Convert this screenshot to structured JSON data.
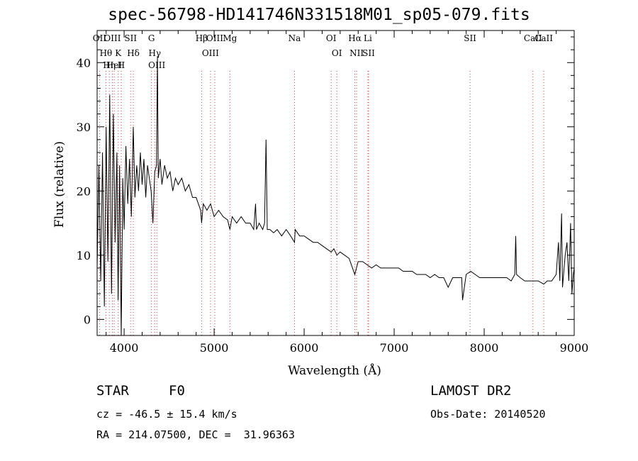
{
  "chart_data": {
    "type": "line",
    "title": "spec-56798-HD141746N331518M01_sp05-079.fits",
    "xlabel": "Wavelength (Å)",
    "ylabel": "Flux (relative)",
    "xlim": [
      3700,
      9000
    ],
    "ylim": [
      -2.5,
      45
    ],
    "x_ticks": [
      4000,
      5000,
      6000,
      7000,
      8000,
      9000
    ],
    "y_ticks": [
      0,
      10,
      20,
      30,
      40
    ],
    "series": [
      {
        "values": [
          [
            3700,
            8
          ],
          [
            3720,
            24
          ],
          [
            3740,
            6
          ],
          [
            3760,
            26
          ],
          [
            3780,
            2
          ],
          [
            3800,
            30
          ],
          [
            3820,
            9
          ],
          [
            3840,
            35
          ],
          [
            3860,
            4
          ],
          [
            3880,
            32
          ],
          [
            3900,
            12
          ],
          [
            3920,
            26
          ],
          [
            3933,
            3
          ],
          [
            3950,
            24
          ],
          [
            3968,
            -2.5
          ],
          [
            3985,
            22
          ],
          [
            4000,
            14
          ],
          [
            4020,
            27
          ],
          [
            4040,
            18
          ],
          [
            4060,
            25
          ],
          [
            4080,
            16
          ],
          [
            4102,
            30
          ],
          [
            4120,
            19
          ],
          [
            4140,
            24
          ],
          [
            4160,
            20
          ],
          [
            4180,
            26
          ],
          [
            4200,
            21
          ],
          [
            4220,
            25
          ],
          [
            4240,
            19
          ],
          [
            4260,
            24
          ],
          [
            4280,
            22
          ],
          [
            4300,
            20
          ],
          [
            4320,
            15
          ],
          [
            4340,
            23
          ],
          [
            4360,
            24
          ],
          [
            4370,
            41
          ],
          [
            4380,
            22
          ],
          [
            4400,
            25
          ],
          [
            4420,
            21
          ],
          [
            4450,
            24
          ],
          [
            4480,
            22
          ],
          [
            4510,
            23
          ],
          [
            4540,
            20
          ],
          [
            4570,
            22
          ],
          [
            4600,
            21
          ],
          [
            4640,
            22
          ],
          [
            4680,
            20
          ],
          [
            4720,
            21
          ],
          [
            4760,
            19
          ],
          [
            4800,
            19
          ],
          [
            4850,
            17
          ],
          [
            4861,
            15
          ],
          [
            4880,
            18
          ],
          [
            4920,
            17
          ],
          [
            4960,
            18
          ],
          [
            5000,
            16
          ],
          [
            5050,
            17
          ],
          [
            5100,
            16
          ],
          [
            5150,
            15.5
          ],
          [
            5175,
            14
          ],
          [
            5200,
            16
          ],
          [
            5250,
            15
          ],
          [
            5300,
            16
          ],
          [
            5350,
            15
          ],
          [
            5400,
            15
          ],
          [
            5440,
            14
          ],
          [
            5460,
            18
          ],
          [
            5470,
            14
          ],
          [
            5500,
            15
          ],
          [
            5540,
            14
          ],
          [
            5560,
            15
          ],
          [
            5577,
            28
          ],
          [
            5590,
            14
          ],
          [
            5620,
            14
          ],
          [
            5660,
            13.5
          ],
          [
            5700,
            14
          ],
          [
            5750,
            13
          ],
          [
            5800,
            14
          ],
          [
            5850,
            13
          ],
          [
            5893,
            12
          ],
          [
            5900,
            14
          ],
          [
            5950,
            13
          ],
          [
            6000,
            13
          ],
          [
            6050,
            12.5
          ],
          [
            6100,
            12
          ],
          [
            6150,
            12
          ],
          [
            6200,
            11.5
          ],
          [
            6250,
            11
          ],
          [
            6300,
            10.5
          ],
          [
            6330,
            11
          ],
          [
            6363,
            10
          ],
          [
            6400,
            10.5
          ],
          [
            6450,
            10
          ],
          [
            6500,
            9.5
          ],
          [
            6563,
            7
          ],
          [
            6600,
            9
          ],
          [
            6650,
            9
          ],
          [
            6700,
            8.5
          ],
          [
            6750,
            8
          ],
          [
            6800,
            8.5
          ],
          [
            6850,
            8
          ],
          [
            6900,
            8
          ],
          [
            6950,
            8
          ],
          [
            7000,
            8
          ],
          [
            7050,
            8
          ],
          [
            7100,
            7.5
          ],
          [
            7150,
            7.5
          ],
          [
            7200,
            7.5
          ],
          [
            7250,
            7
          ],
          [
            7300,
            7
          ],
          [
            7350,
            7
          ],
          [
            7400,
            6.5
          ],
          [
            7450,
            7
          ],
          [
            7500,
            6.5
          ],
          [
            7550,
            6.5
          ],
          [
            7600,
            5
          ],
          [
            7650,
            6.5
          ],
          [
            7700,
            6.5
          ],
          [
            7750,
            6.5
          ],
          [
            7760,
            3
          ],
          [
            7800,
            7
          ],
          [
            7850,
            7.5
          ],
          [
            7900,
            7
          ],
          [
            7950,
            6.5
          ],
          [
            8000,
            6.5
          ],
          [
            8050,
            6.5
          ],
          [
            8100,
            6.5
          ],
          [
            8150,
            6.5
          ],
          [
            8200,
            6.5
          ],
          [
            8250,
            6.5
          ],
          [
            8300,
            6
          ],
          [
            8340,
            7
          ],
          [
            8350,
            13
          ],
          [
            8360,
            7
          ],
          [
            8400,
            6.5
          ],
          [
            8450,
            6
          ],
          [
            8500,
            6
          ],
          [
            8542,
            6
          ],
          [
            8600,
            6
          ],
          [
            8662,
            5.5
          ],
          [
            8700,
            6
          ],
          [
            8750,
            6
          ],
          [
            8800,
            7
          ],
          [
            8825,
            12
          ],
          [
            8840,
            6
          ],
          [
            8860,
            16.5
          ],
          [
            8870,
            5
          ],
          [
            8900,
            10
          ],
          [
            8920,
            12
          ],
          [
            8940,
            6
          ],
          [
            8960,
            15
          ],
          [
            8975,
            4
          ],
          [
            8990,
            7
          ],
          [
            9000,
            8
          ]
        ]
      }
    ],
    "line_markers": [
      {
        "label": "Hθ",
        "wl": 3798
      },
      {
        "label": "OII",
        "wl": 3727
      },
      {
        "label": "OIII",
        "wl": 3869
      },
      {
        "label": "Hη",
        "wl": 3835
      },
      {
        "label": "HeI",
        "wl": 3889
      },
      {
        "label": "K",
        "wl": 3934
      },
      {
        "label": "H",
        "wl": 3968
      },
      {
        "label": "SII",
        "wl": 4072
      },
      {
        "label": "Hδ",
        "wl": 4102
      },
      {
        "label": "OIII",
        "wl": 4363
      },
      {
        "label": "Hγ",
        "wl": 4340
      },
      {
        "label": "G",
        "wl": 4304
      },
      {
        "label": "OIII",
        "wl": 4959
      },
      {
        "label": "OIII",
        "wl": 5007
      },
      {
        "label": "Hβ",
        "wl": 4861
      },
      {
        "label": "Mg",
        "wl": 5175
      },
      {
        "label": "Na",
        "wl": 5893
      },
      {
        "label": "OI",
        "wl": 6300
      },
      {
        "label": "OI",
        "wl": 6363
      },
      {
        "label": "NII",
        "wl": 6583
      },
      {
        "label": "Hα",
        "wl": 6563
      },
      {
        "label": "SII",
        "wl": 6716
      },
      {
        "label": "Li",
        "wl": 6708
      },
      {
        "label": "SII",
        "wl": 7843
      },
      {
        "label": "CaII",
        "wl": 8662
      },
      {
        "label": "CaII",
        "wl": 8542
      }
    ],
    "line_marker_color": "#d94040"
  },
  "info": {
    "class_label": "STAR",
    "subclass": "F0",
    "survey": "LAMOST DR2",
    "redshift": "cz = -46.5 ± 15.4 km/s",
    "obs_date": "Obs-Date: 20140520",
    "coords": "RA = 214.07500, DEC =  31.96363"
  }
}
